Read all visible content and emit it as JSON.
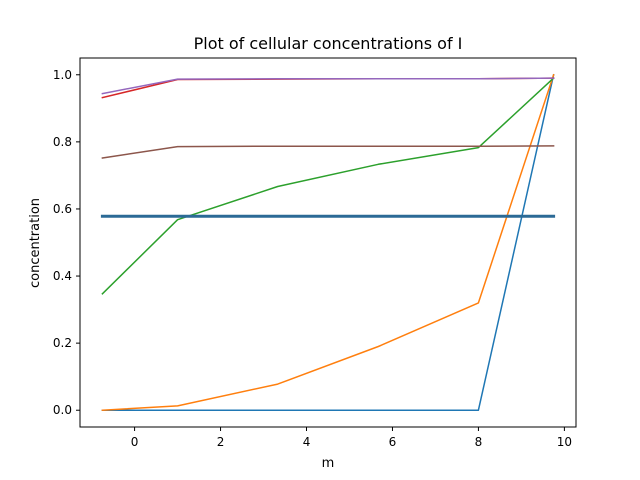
{
  "chart_data": {
    "type": "line",
    "title": "Plot of cellular concentrations of I",
    "xlabel": "m",
    "ylabel": "concentration",
    "xlim": [
      -1.27,
      10.27
    ],
    "ylim": [
      -0.05,
      1.05
    ],
    "xticks": [
      0,
      2,
      4,
      6,
      8,
      10
    ],
    "yticks": [
      0.0,
      0.2,
      0.4,
      0.6,
      0.8,
      1.0
    ],
    "ytick_labels": [
      "0.0",
      "0.2",
      "0.4",
      "0.6",
      "0.8",
      "1.0"
    ],
    "grid": false,
    "legend": "none",
    "series": [
      {
        "color": "#1f77b4",
        "width": 1.5,
        "x": [
          -0.75,
          1.0,
          3.33,
          5.67,
          8.0,
          9.75
        ],
        "y": [
          0.0,
          0.0,
          0.0,
          0.0,
          0.0,
          1.0
        ]
      },
      {
        "color": "#ff7f0e",
        "width": 1.5,
        "x": [
          -0.75,
          1.0,
          3.33,
          5.67,
          8.0,
          9.75
        ],
        "y": [
          0.0,
          0.013,
          0.078,
          0.19,
          0.32,
          1.0
        ]
      },
      {
        "color": "#2ca02c",
        "width": 1.5,
        "x": [
          -0.75,
          1.0,
          3.33,
          5.67,
          8.0,
          9.75
        ],
        "y": [
          0.347,
          0.568,
          0.667,
          0.733,
          0.783,
          0.99
        ]
      },
      {
        "color": "#d62728",
        "width": 1.5,
        "x": [
          -0.75,
          1.0,
          3.33,
          5.67,
          8.0,
          9.75
        ],
        "y": [
          0.932,
          0.986,
          0.987,
          0.988,
          0.988,
          0.99
        ]
      },
      {
        "color": "#9467bd",
        "width": 1.5,
        "x": [
          -0.75,
          1.0,
          3.33,
          5.67,
          8.0,
          9.75
        ],
        "y": [
          0.944,
          0.987,
          0.988,
          0.988,
          0.988,
          0.99
        ]
      },
      {
        "color": "#8c564b",
        "width": 1.5,
        "x": [
          -0.75,
          1.0,
          3.33,
          5.67,
          8.0,
          9.75
        ],
        "y": [
          0.752,
          0.786,
          0.787,
          0.787,
          0.787,
          0.788
        ]
      },
      {
        "color": "#2b6a96",
        "width": 3,
        "x": [
          -0.75,
          9.75
        ],
        "y": [
          0.578,
          0.578
        ]
      }
    ]
  }
}
